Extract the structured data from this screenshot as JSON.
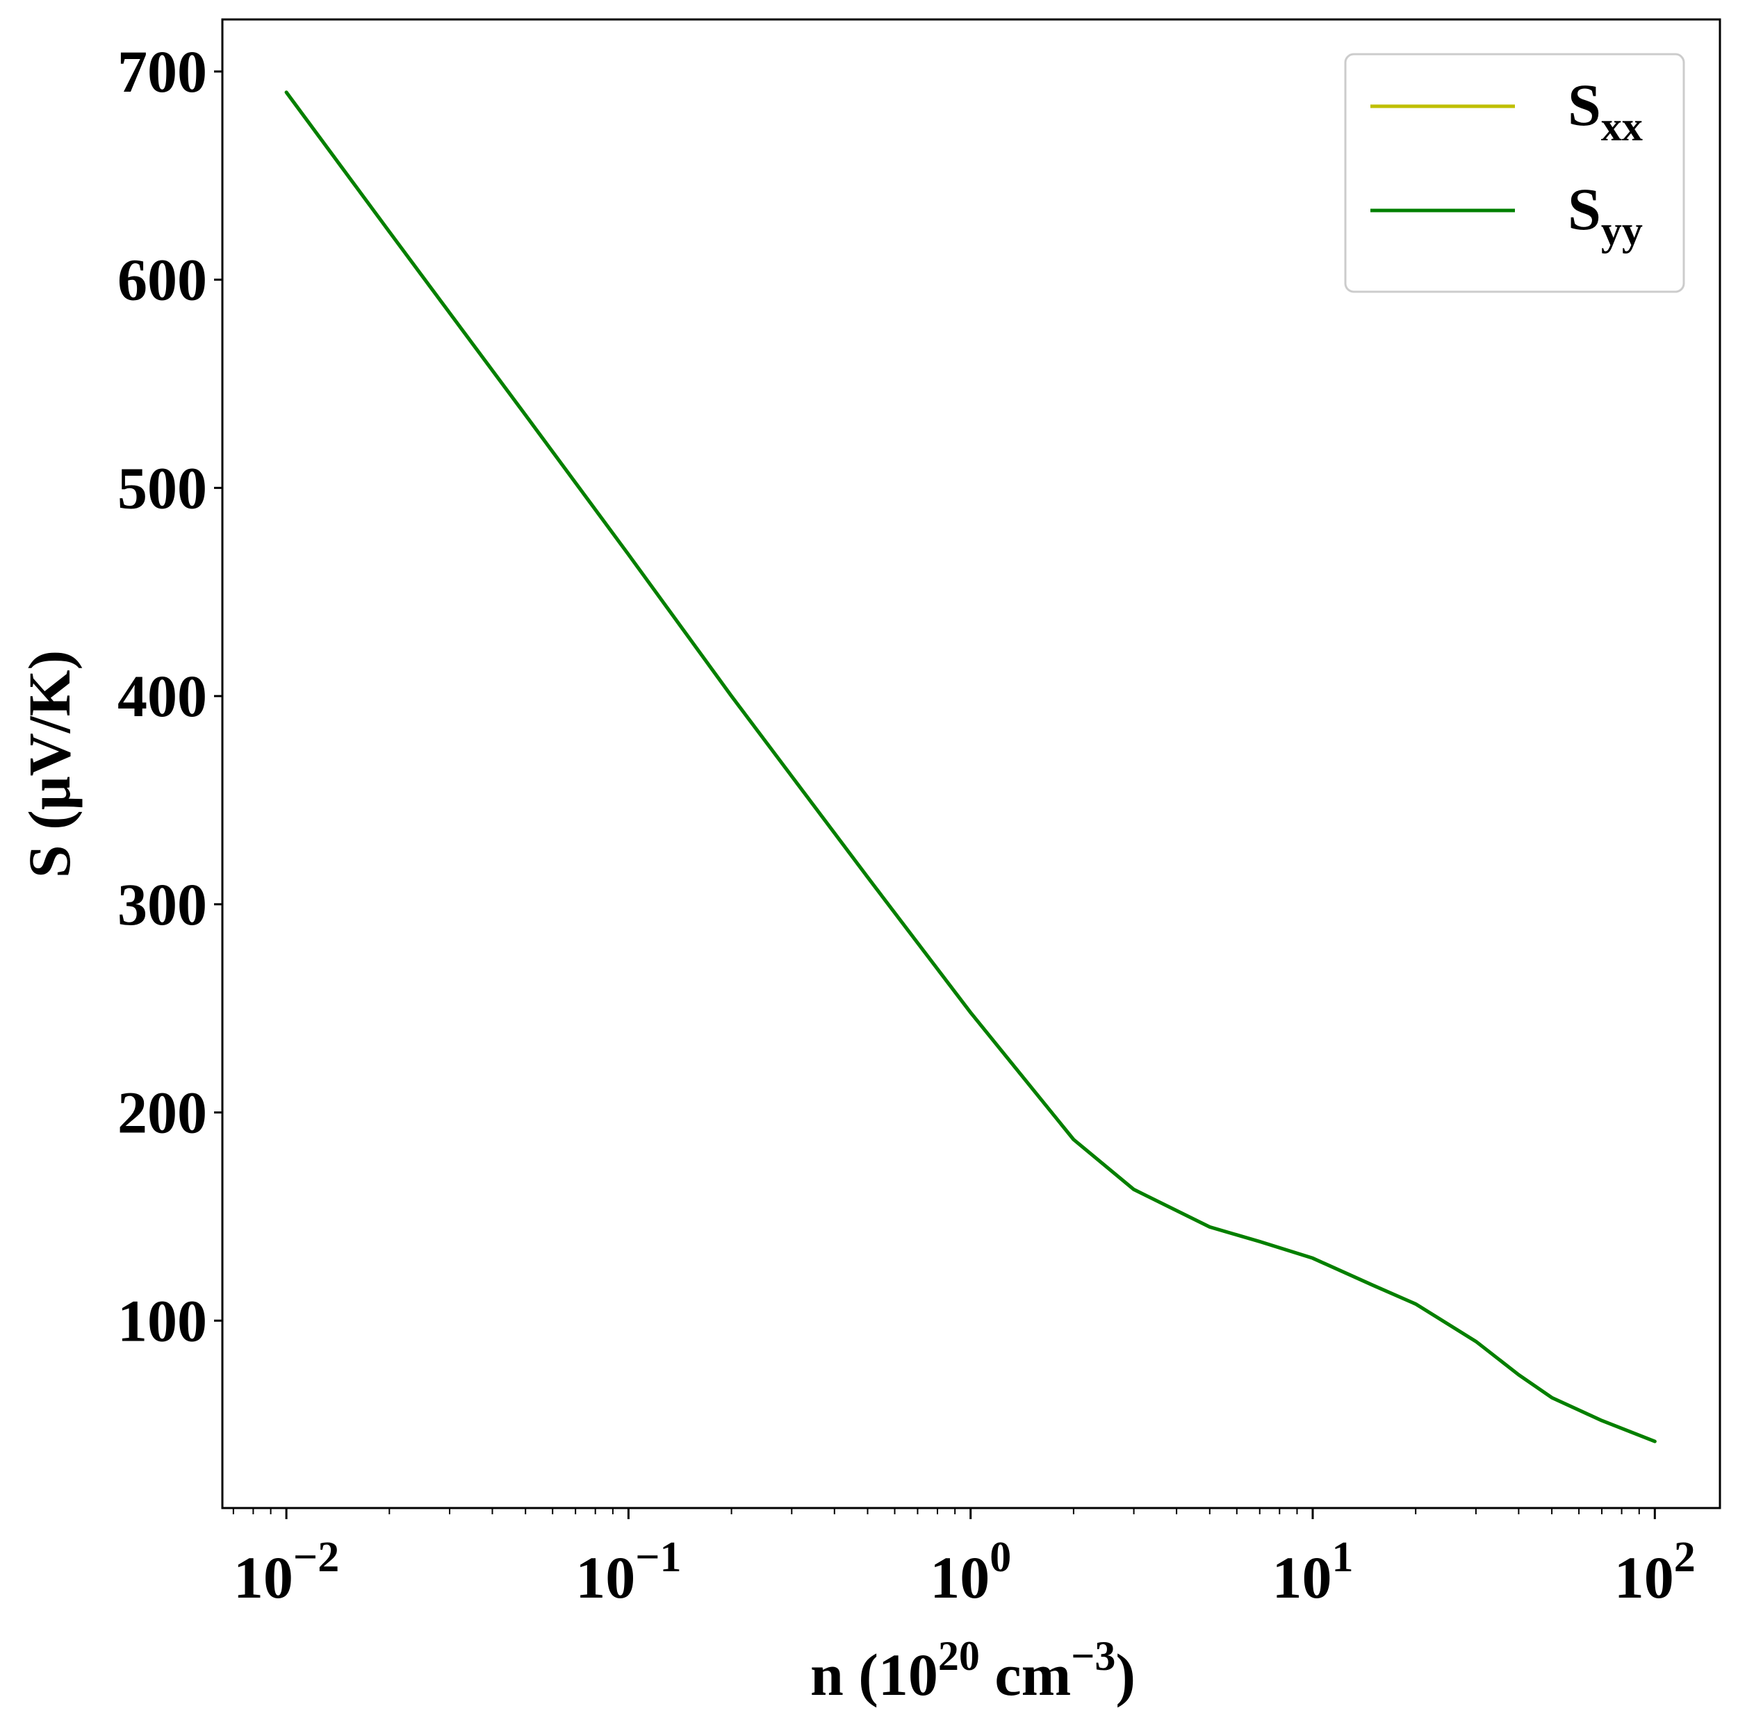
{
  "chart_data": {
    "type": "line",
    "xscale": "log",
    "xlabel": {
      "main": "n (10",
      "exp": "20",
      "unit": " cm",
      "unit_exp": "−3",
      "close": ")"
    },
    "ylabel": "S (μV/K)",
    "xlim": [
      0.0065,
      155
    ],
    "ylim": [
      10,
      725
    ],
    "x_ticks": [
      {
        "value": 0.01,
        "base": "10",
        "exp": "−2"
      },
      {
        "value": 0.1,
        "base": "10",
        "exp": "−1"
      },
      {
        "value": 1,
        "base": "10",
        "exp": "0"
      },
      {
        "value": 10,
        "base": "10",
        "exp": "1"
      },
      {
        "value": 100,
        "base": "10",
        "exp": "2"
      }
    ],
    "y_ticks": [
      100,
      200,
      300,
      400,
      500,
      600,
      700
    ],
    "grid": false,
    "legend_position": "top-right",
    "series": [
      {
        "name": "S",
        "subscript": "xx",
        "color": "#bfbf00",
        "x": [
          0.01,
          0.02,
          0.05,
          0.1,
          0.2,
          0.5,
          1,
          2,
          3,
          5,
          7,
          10,
          15,
          20,
          30,
          40,
          50,
          70,
          100
        ],
        "y": [
          690,
          623,
          535,
          468,
          400,
          313,
          248,
          187,
          163,
          145,
          138,
          130,
          117,
          108,
          90,
          74,
          63,
          52,
          42
        ]
      },
      {
        "name": "S",
        "subscript": "yy",
        "color": "#007f00",
        "x": [
          0.01,
          0.02,
          0.05,
          0.1,
          0.2,
          0.5,
          1,
          2,
          3,
          5,
          7,
          10,
          15,
          20,
          30,
          40,
          50,
          70,
          100
        ],
        "y": [
          690,
          623,
          535,
          468,
          400,
          313,
          248,
          187,
          163,
          145,
          138,
          130,
          117,
          108,
          90,
          74,
          63,
          52,
          42
        ]
      }
    ]
  }
}
